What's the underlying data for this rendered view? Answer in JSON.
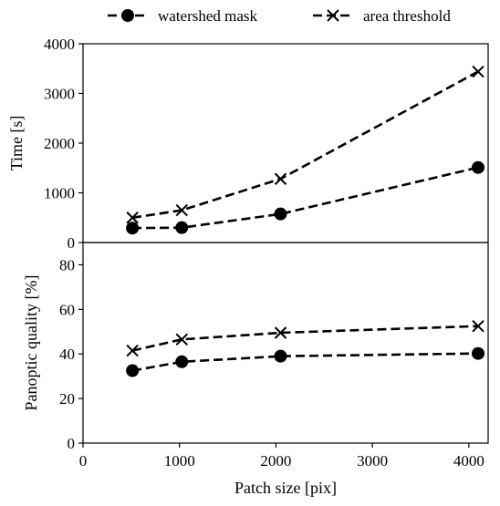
{
  "chart_data": [
    {
      "type": "line",
      "panel": "top",
      "xlabel": "",
      "ylabel": "Time [s]",
      "xlim": [
        0,
        4200
      ],
      "ylim": [
        0,
        4000
      ],
      "x_ticks": [
        0,
        1000,
        2000,
        3000,
        4000
      ],
      "y_ticks": [
        0,
        1000,
        2000,
        3000,
        4000
      ],
      "x": [
        512,
        1024,
        2048,
        4096
      ],
      "series": [
        {
          "name": "watershed mask",
          "marker": "circle",
          "style": "dashed",
          "values": [
            290,
            300,
            575,
            1510
          ]
        },
        {
          "name": "area threshold",
          "marker": "x",
          "style": "dashed",
          "values": [
            500,
            650,
            1280,
            3440
          ]
        }
      ],
      "grid": false
    },
    {
      "type": "line",
      "panel": "bottom",
      "xlabel": "Patch size [pix]",
      "ylabel": "Panoptic quality [%]",
      "xlim": [
        0,
        4200
      ],
      "ylim": [
        0,
        90
      ],
      "x_ticks": [
        0,
        1000,
        2000,
        3000,
        4000
      ],
      "y_ticks": [
        0,
        20,
        40,
        60,
        80
      ],
      "x": [
        512,
        1024,
        2048,
        4096
      ],
      "series": [
        {
          "name": "watershed mask",
          "marker": "circle",
          "style": "dashed",
          "values": [
            32.5,
            36.5,
            39.0,
            40.2
          ]
        },
        {
          "name": "area threshold",
          "marker": "x",
          "style": "dashed",
          "values": [
            41.5,
            46.5,
            49.5,
            52.5
          ]
        }
      ],
      "grid": false
    }
  ],
  "legend": {
    "placement": "top-center",
    "items": [
      {
        "label": "watershed mask",
        "marker": "circle"
      },
      {
        "label": "area threshold",
        "marker": "x"
      }
    ]
  },
  "colors": {
    "line": "#000000",
    "background": "#ffffff"
  }
}
